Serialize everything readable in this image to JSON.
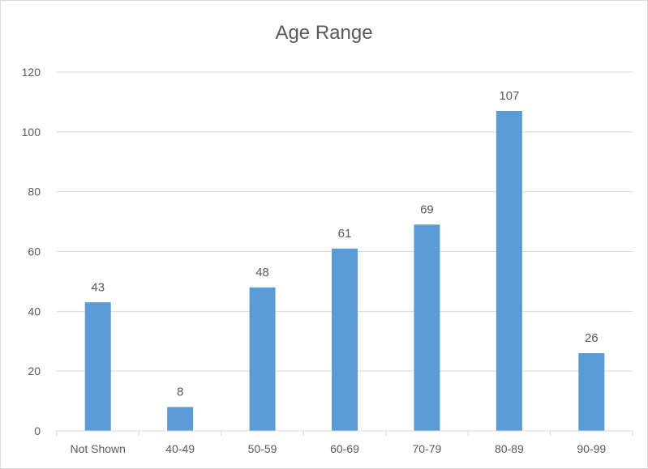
{
  "chart_data": {
    "type": "bar",
    "title": "Age Range",
    "xlabel": "",
    "ylabel": "",
    "categories": [
      "Not Shown",
      "40-49",
      "50-59",
      "60-69",
      "70-79",
      "80-89",
      "90-99"
    ],
    "values": [
      43,
      8,
      48,
      61,
      69,
      107,
      26
    ],
    "ylim": [
      0,
      120
    ],
    "yticks": [
      0,
      20,
      40,
      60,
      80,
      100,
      120
    ],
    "grid": true,
    "legend": "none",
    "data_labels": true,
    "colors": {
      "bar": "#5b9bd5",
      "grid": "#d9d9d9",
      "text": "#595959"
    }
  }
}
